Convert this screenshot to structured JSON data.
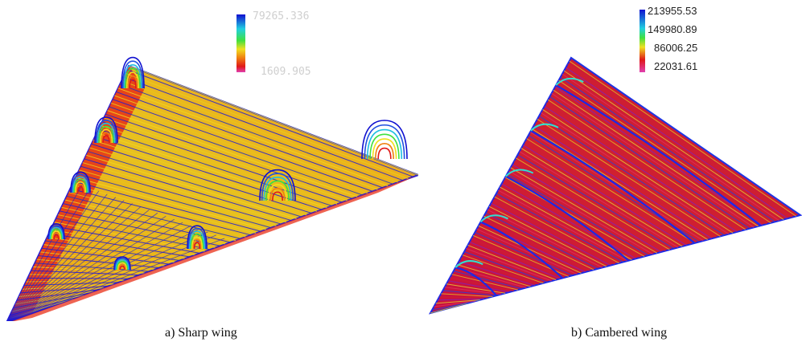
{
  "figure": {
    "panels": [
      {
        "caption": "a) Sharp wing",
        "legend": {
          "max_label": "79265.336",
          "min_label": "1609.905"
        }
      },
      {
        "caption": "b) Cambered wing",
        "legend": {
          "labels": [
            "213955.53",
            "149980.89",
            "86006.25",
            "22031.61"
          ]
        }
      }
    ],
    "colors": {
      "high": "#1010d0",
      "mid_cyan": "#20d0e0",
      "mid_green": "#40e040",
      "mid_yellow": "#f0e020",
      "mid_orange": "#f08010",
      "low_red": "#e01818",
      "lowest_magenta": "#e040b0"
    }
  }
}
